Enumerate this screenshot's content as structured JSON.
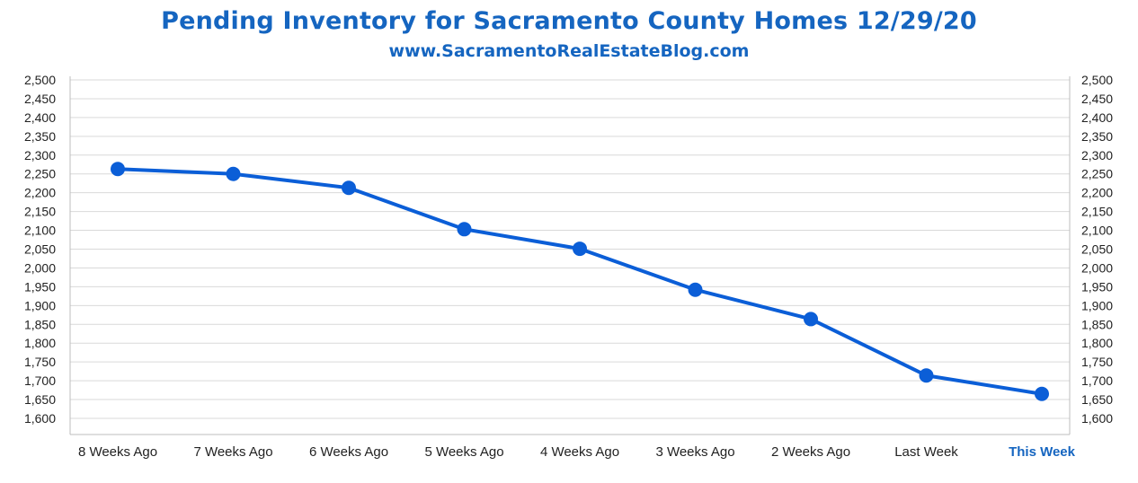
{
  "title": "Pending Inventory for Sacramento County Homes 12/29/20",
  "subtitle": "www.SacramentoRealEstateBlog.com",
  "colors": {
    "title": "#1565c0",
    "line": "#0b5ed7",
    "grid": "#d9d9d9",
    "highlight_label": "#1565c0"
  },
  "chart_data": {
    "type": "line",
    "categories": [
      "8 Weeks Ago",
      "7 Weeks Ago",
      "6 Weeks Ago",
      "5 Weeks Ago",
      "4 Weeks Ago",
      "3 Weeks Ago",
      "2 Weeks Ago",
      "Last Week",
      "This Week"
    ],
    "highlight_category": "This Week",
    "series": [
      {
        "values": [
          2263,
          2250,
          2213,
          2103,
          2051,
          1942,
          1864,
          1714,
          1665
        ]
      }
    ],
    "ylim": [
      1600,
      2500
    ],
    "yticks": [
      1600,
      1650,
      1700,
      1750,
      1800,
      1850,
      1900,
      1950,
      2000,
      2050,
      2100,
      2150,
      2200,
      2250,
      2300,
      2350,
      2400,
      2450,
      2500
    ],
    "ytick_labels": [
      "1,600",
      "1,650",
      "1,700",
      "1,750",
      "1,800",
      "1,850",
      "1,900",
      "1,950",
      "2,000",
      "2,050",
      "2,100",
      "2,150",
      "2,200",
      "2,250",
      "2,300",
      "2,350",
      "2,400",
      "2,450",
      "2,500"
    ],
    "secondary_y_axis": true,
    "grid": true,
    "xlabel": "",
    "ylabel": ""
  }
}
